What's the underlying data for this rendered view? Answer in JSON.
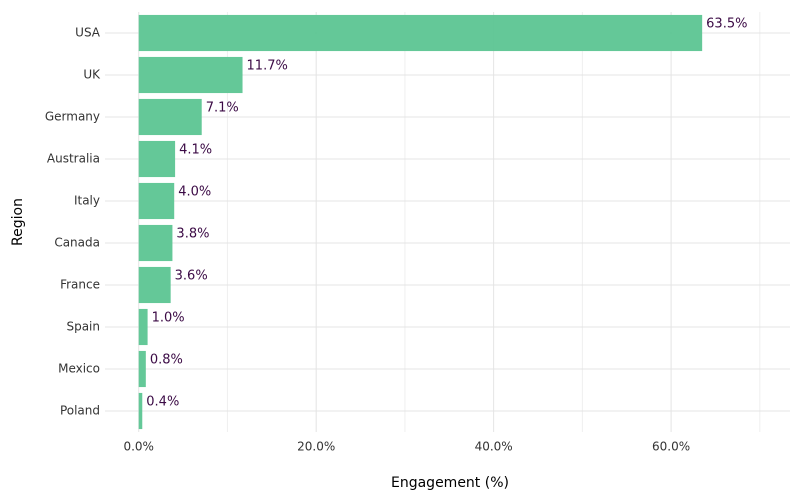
{
  "chart_data": {
    "type": "hbar",
    "x_label": "Engagement (%)",
    "y_label": "Region",
    "categories": [
      "USA",
      "UK",
      "Germany",
      "Australia",
      "Italy",
      "Canada",
      "France",
      "Spain",
      "Mexico",
      "Poland"
    ],
    "values": [
      63.5,
      11.7,
      7.1,
      4.1,
      4.0,
      3.8,
      3.6,
      1.0,
      0.8,
      0.4
    ],
    "value_labels": [
      "63.5%",
      "11.7%",
      "7.1%",
      "4.1%",
      "4.0%",
      "3.8%",
      "3.6%",
      "1.0%",
      "0.8%",
      "0.4%"
    ],
    "color": "#5cc592",
    "label_color": "#3b0a45",
    "xlim": [
      -3.8,
      73.4
    ],
    "xticks": [
      {
        "value": 0,
        "label": "0.0%"
      },
      {
        "value": 20,
        "label": "20.0%"
      },
      {
        "value": 40,
        "label": "40.0%"
      },
      {
        "value": 60,
        "label": "60.0%"
      }
    ],
    "minor_xticks": [
      10,
      30,
      50,
      70
    ],
    "grid": true
  }
}
